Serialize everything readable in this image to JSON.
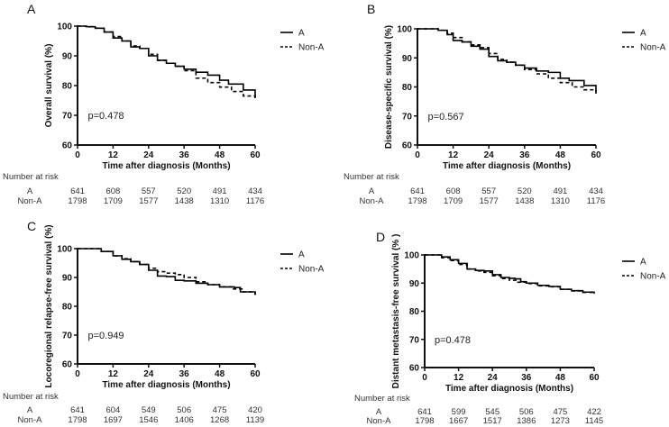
{
  "chart_data": [
    {
      "type": "line",
      "panel": "A",
      "ylabel": "Overall survival (%)",
      "xlabel": "Time after diagnosis (Months)",
      "xlim": [
        0,
        60
      ],
      "ylim": [
        60,
        100
      ],
      "xticks": [
        "0",
        "12",
        "24",
        "36",
        "48",
        "60"
      ],
      "yticks": [
        "60",
        "70",
        "80",
        "90",
        "100"
      ],
      "p_value": "p=0.478",
      "legend_placement": "right",
      "series": [
        {
          "name": "A",
          "style": "solid",
          "points": [
            [
              0,
              100
            ],
            [
              3,
              99.8
            ],
            [
              6,
              99.3
            ],
            [
              9,
              98
            ],
            [
              12,
              96
            ],
            [
              15,
              95
            ],
            [
              18,
              93
            ],
            [
              21,
              92.5
            ],
            [
              24,
              90
            ],
            [
              27,
              88.5
            ],
            [
              30,
              87.5
            ],
            [
              33,
              86.5
            ],
            [
              36,
              85.5
            ],
            [
              40,
              84.5
            ],
            [
              44,
              83.5
            ],
            [
              48,
              81.8
            ],
            [
              51,
              80.5
            ],
            [
              53,
              80.5
            ],
            [
              56,
              78.5
            ],
            [
              60,
              76
            ]
          ]
        },
        {
          "name": "Non-A",
          "style": "dashed",
          "points": [
            [
              0,
              100
            ],
            [
              3,
              99.8
            ],
            [
              6,
              99.3
            ],
            [
              9,
              98
            ],
            [
              12,
              96.5
            ],
            [
              15,
              95
            ],
            [
              18,
              93.3
            ],
            [
              21,
              92.5
            ],
            [
              24,
              90.5
            ],
            [
              27,
              88.5
            ],
            [
              30,
              87.5
            ],
            [
              33,
              86.5
            ],
            [
              36,
              85
            ],
            [
              40,
              82.5
            ],
            [
              44,
              81
            ],
            [
              48,
              79.5
            ],
            [
              52,
              78
            ],
            [
              56,
              76.5
            ],
            [
              60,
              75
            ]
          ]
        }
      ],
      "risk_table": {
        "title": "Number at risk",
        "rows": [
          {
            "label": "A",
            "values": [
              "641",
              "608",
              "557",
              "520",
              "491",
              "434"
            ]
          },
          {
            "label": "Non-A",
            "values": [
              "1798",
              "1709",
              "1577",
              "1438",
              "1310",
              "1176"
            ]
          }
        ]
      }
    },
    {
      "type": "line",
      "panel": "B",
      "ylabel": "Disease-specific survival (%)",
      "xlabel": "Time after diagnosis (Months)",
      "xlim": [
        0,
        60
      ],
      "ylim": [
        60,
        100
      ],
      "xticks": [
        "0",
        "12",
        "24",
        "36",
        "48",
        "60"
      ],
      "yticks": [
        "60",
        "70",
        "80",
        "90",
        "100"
      ],
      "p_value": "p=0.567",
      "legend_placement": "right",
      "series": [
        {
          "name": "A",
          "style": "solid",
          "points": [
            [
              0,
              100
            ],
            [
              5,
              100
            ],
            [
              7,
              99.5
            ],
            [
              10,
              98
            ],
            [
              12,
              96
            ],
            [
              15,
              95.5
            ],
            [
              18,
              94
            ],
            [
              21,
              93
            ],
            [
              24,
              90.5
            ],
            [
              27,
              89
            ],
            [
              30,
              88.5
            ],
            [
              33,
              87.5
            ],
            [
              36,
              86.5
            ],
            [
              40,
              85.5
            ],
            [
              44,
              85
            ],
            [
              48,
              83
            ],
            [
              51,
              82.2
            ],
            [
              53,
              82.2
            ],
            [
              56,
              80.5
            ],
            [
              60,
              78.5
            ]
          ]
        },
        {
          "name": "Non-A",
          "style": "dashed",
          "points": [
            [
              0,
              100
            ],
            [
              5,
              100
            ],
            [
              7,
              99.5
            ],
            [
              10,
              98.5
            ],
            [
              12,
              97
            ],
            [
              15,
              95.5
            ],
            [
              18,
              94.5
            ],
            [
              21,
              93.5
            ],
            [
              24,
              91.5
            ],
            [
              27,
              89.5
            ],
            [
              30,
              88.5
            ],
            [
              33,
              87.5
            ],
            [
              36,
              86
            ],
            [
              40,
              84.5
            ],
            [
              44,
              83
            ],
            [
              48,
              81.5
            ],
            [
              52,
              80
            ],
            [
              56,
              79
            ],
            [
              60,
              77.5
            ]
          ]
        }
      ],
      "risk_table": {
        "title": "Number at risk",
        "rows": [
          {
            "label": "A",
            "values": [
              "641",
              "608",
              "557",
              "520",
              "491",
              "434"
            ]
          },
          {
            "label": "Non-A",
            "values": [
              "1798",
              "1709",
              "1577",
              "1438",
              "1310",
              "1176"
            ]
          }
        ]
      }
    },
    {
      "type": "line",
      "panel": "C",
      "ylabel": "Locoregional relapse-free survival (%)",
      "xlabel": "Time after diagnosis (Months)",
      "xlim": [
        0,
        60
      ],
      "ylim": [
        60,
        100
      ],
      "xticks": [
        "0",
        "12",
        "24",
        "36",
        "48",
        "60"
      ],
      "yticks": [
        "60",
        "70",
        "80",
        "90",
        "100"
      ],
      "p_value": "p=0.949",
      "legend_placement": "right",
      "series": [
        {
          "name": "A",
          "style": "solid",
          "points": [
            [
              0,
              100
            ],
            [
              4,
              100
            ],
            [
              8,
              99
            ],
            [
              12,
              97.5
            ],
            [
              15,
              96.3
            ],
            [
              18,
              95.5
            ],
            [
              21,
              94.5
            ],
            [
              24,
              92.5
            ],
            [
              27,
              90.5
            ],
            [
              30,
              90.3
            ],
            [
              33,
              89
            ],
            [
              36,
              88.8
            ],
            [
              40,
              88
            ],
            [
              44,
              87.5
            ],
            [
              48,
              86.7
            ],
            [
              53,
              86.5
            ],
            [
              55,
              85
            ],
            [
              60,
              84
            ]
          ]
        },
        {
          "name": "Non-A",
          "style": "dashed",
          "points": [
            [
              0,
              100
            ],
            [
              4,
              100
            ],
            [
              8,
              99
            ],
            [
              12,
              97.5
            ],
            [
              15,
              96.5
            ],
            [
              18,
              95.5
            ],
            [
              21,
              94.5
            ],
            [
              24,
              93.2
            ],
            [
              27,
              92
            ],
            [
              30,
              91.5
            ],
            [
              33,
              91
            ],
            [
              36,
              90
            ],
            [
              40,
              88.5
            ],
            [
              44,
              87.5
            ],
            [
              48,
              86.8
            ],
            [
              52,
              86
            ],
            [
              56,
              85
            ],
            [
              60,
              84
            ]
          ]
        }
      ],
      "risk_table": {
        "title": "Number at risk",
        "rows": [
          {
            "label": "A",
            "values": [
              "641",
              "604",
              "549",
              "506",
              "475",
              "420"
            ]
          },
          {
            "label": "Non-A",
            "values": [
              "1798",
              "1697",
              "1546",
              "1406",
              "1268",
              "1139"
            ]
          }
        ]
      }
    },
    {
      "type": "line",
      "panel": "D",
      "ylabel": "Distant metastasis-free survival (% )",
      "xlabel": "Time after diagnosis (Months)",
      "xlim": [
        0,
        60
      ],
      "ylim": [
        60,
        100
      ],
      "xticks": [
        "0",
        "12",
        "24",
        "36",
        "48",
        "60"
      ],
      "yticks": [
        "60",
        "70",
        "80",
        "90",
        "100"
      ],
      "p_value": "p=0.478",
      "legend_placement": "right",
      "series": [
        {
          "name": "A",
          "style": "solid",
          "points": [
            [
              0,
              100
            ],
            [
              4,
              100
            ],
            [
              6,
              99.3
            ],
            [
              9,
              98.3
            ],
            [
              12,
              97
            ],
            [
              15,
              95
            ],
            [
              18,
              94.5
            ],
            [
              21,
              94.3
            ],
            [
              24,
              93
            ],
            [
              27,
              92
            ],
            [
              30,
              91.7
            ],
            [
              32,
              91.5
            ],
            [
              34,
              90.5
            ],
            [
              36,
              90
            ],
            [
              40,
              89.2
            ],
            [
              44,
              88.8
            ],
            [
              48,
              87.8
            ],
            [
              52,
              87.3
            ],
            [
              56,
              86.8
            ],
            [
              60,
              86.3
            ]
          ]
        },
        {
          "name": "Non-A",
          "style": "dashed",
          "points": [
            [
              0,
              100
            ],
            [
              4,
              100
            ],
            [
              6,
              99
            ],
            [
              9,
              98
            ],
            [
              12,
              96.6
            ],
            [
              15,
              95
            ],
            [
              18,
              94.3
            ],
            [
              21,
              93.8
            ],
            [
              24,
              92.6
            ],
            [
              27,
              91.6
            ],
            [
              30,
              91
            ],
            [
              33,
              90.3
            ],
            [
              36,
              89.8
            ],
            [
              40,
              89
            ],
            [
              44,
              88.7
            ],
            [
              48,
              87.8
            ],
            [
              52,
              87.2
            ],
            [
              56,
              86.7
            ],
            [
              60,
              86.2
            ]
          ]
        }
      ],
      "risk_table": {
        "title": "Number at risk",
        "rows": [
          {
            "label": "A",
            "values": [
              "641",
              "599",
              "545",
              "506",
              "475",
              "422"
            ]
          },
          {
            "label": "Non-A",
            "values": [
              "1798",
              "1667",
              "1517",
              "1386",
              "1273",
              "1145"
            ]
          }
        ]
      }
    }
  ]
}
